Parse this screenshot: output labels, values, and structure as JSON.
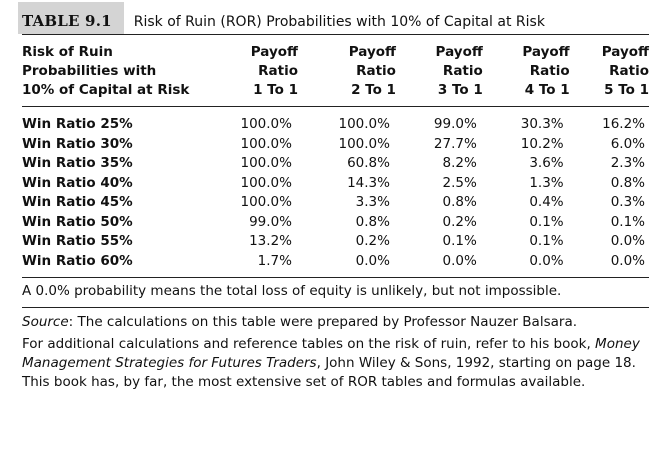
{
  "title": {
    "label": "TABLE 9.1",
    "text": "Risk of Ruin (ROR) Probabilities with 10% of Capital at Risk"
  },
  "table": {
    "row_header": [
      "Risk of Ruin",
      "Probabilities with",
      "10% of Capital at Risk"
    ],
    "columns": [
      [
        "Payoff",
        "Ratio",
        "1 To 1"
      ],
      [
        "Payoff",
        "Ratio",
        "2 To 1"
      ],
      [
        "Payoff",
        "Ratio",
        "3 To 1"
      ],
      [
        "Payoff",
        "Ratio",
        "4 To 1"
      ],
      [
        "Payoff",
        "Ratio",
        "5 To 1"
      ]
    ],
    "rows": [
      {
        "label": "Win Ratio 25%",
        "values": [
          "100.0%",
          "100.0%",
          "99.0%",
          "30.3%",
          "16.2%"
        ]
      },
      {
        "label": "Win Ratio 30%",
        "values": [
          "100.0%",
          "100.0%",
          "27.7%",
          "10.2%",
          "6.0%"
        ]
      },
      {
        "label": "Win Ratio 35%",
        "values": [
          "100.0%",
          "60.8%",
          "8.2%",
          "3.6%",
          "2.3%"
        ]
      },
      {
        "label": "Win Ratio 40%",
        "values": [
          "100.0%",
          "14.3%",
          "2.5%",
          "1.3%",
          "0.8%"
        ]
      },
      {
        "label": "Win Ratio 45%",
        "values": [
          "100.0%",
          "3.3%",
          "0.8%",
          "0.4%",
          "0.3%"
        ]
      },
      {
        "label": "Win Ratio 50%",
        "values": [
          "99.0%",
          "0.8%",
          "0.2%",
          "0.1%",
          "0.1%"
        ]
      },
      {
        "label": "Win Ratio 55%",
        "values": [
          "13.2%",
          "0.2%",
          "0.1%",
          "0.1%",
          "0.0%"
        ]
      },
      {
        "label": "Win Ratio 60%",
        "values": [
          "1.7%",
          "0.0%",
          "0.0%",
          "0.0%",
          "0.0%"
        ]
      }
    ]
  },
  "note": "A 0.0% probability means the total loss of equity is unlikely, but not impossible.",
  "source": {
    "label": "Source",
    "text": ": The calculations on this table were prepared by Professor Nauzer Balsara."
  },
  "additional": {
    "part1": "For additional calculations and reference tables on the risk of ruin, refer to his book, ",
    "book_title": "Money Management Strategies for Futures Traders",
    "part2": ", John Wiley & Sons, 1992, starting on page 18. This book has, by far, the most extensive set of ROR tables and formulas available."
  }
}
